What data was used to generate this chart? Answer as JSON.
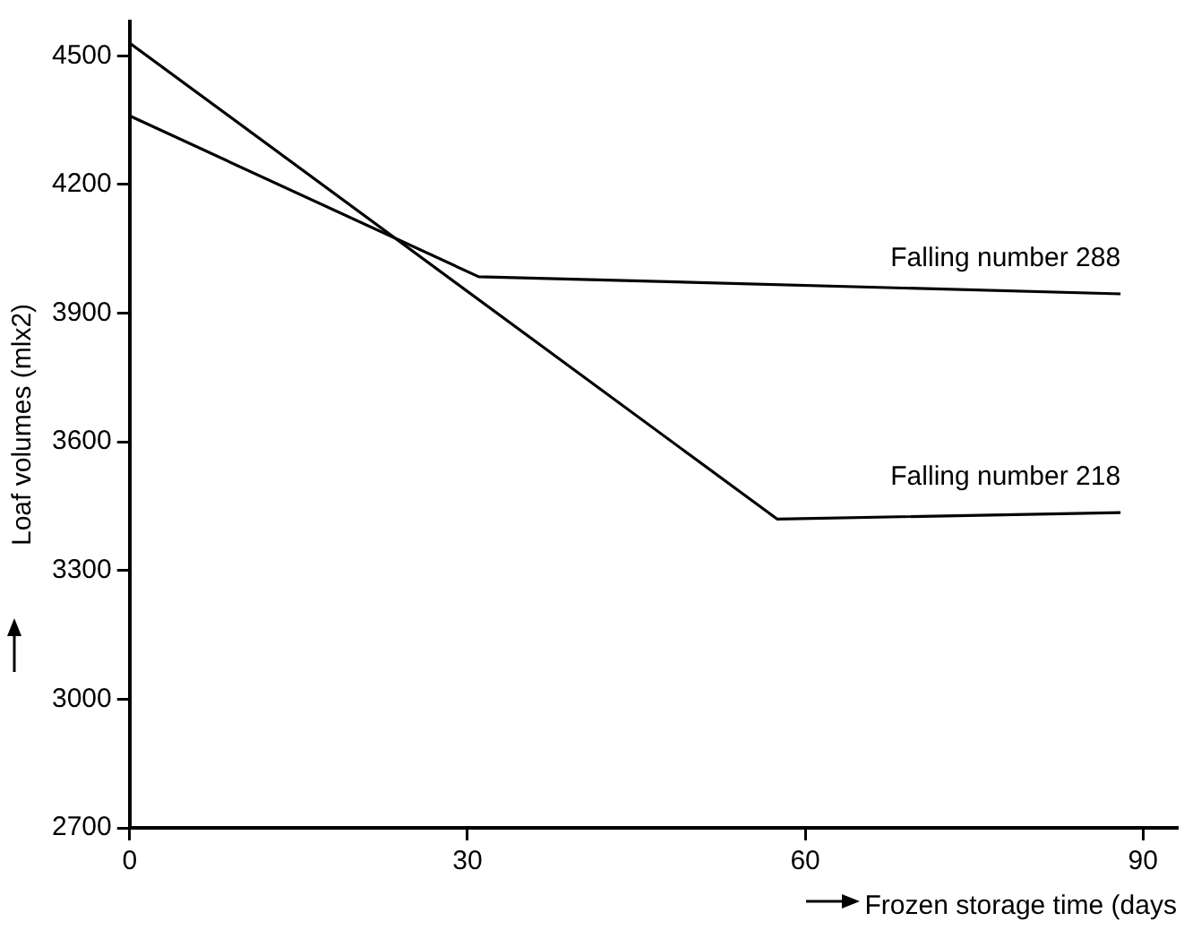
{
  "chart_data": {
    "type": "line",
    "xlabel": "Frozen storage time (days",
    "ylabel": "Loaf volumes (mlx2)",
    "xlim": [
      0,
      93
    ],
    "xticks": [
      0,
      30,
      60,
      90
    ],
    "ylim": [
      2700,
      4580
    ],
    "yticks": [
      2700,
      3000,
      3300,
      3600,
      3900,
      4200,
      4500
    ],
    "grid": false,
    "legend": false,
    "marker": "none",
    "line_style": "solid",
    "series": [
      {
        "name": "Falling number 288",
        "color": "#000000",
        "x": [
          0,
          31,
          88
        ],
        "values": [
          4360,
          3985,
          3945
        ]
      },
      {
        "name": "Falling number 218",
        "color": "#000000",
        "x": [
          0,
          57.5,
          88
        ],
        "values": [
          4530,
          3420,
          3435
        ]
      }
    ]
  }
}
